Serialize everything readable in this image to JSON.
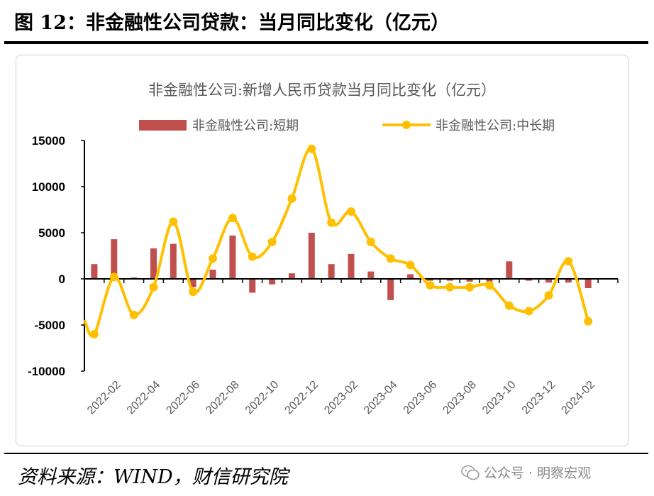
{
  "figure_title": "图 12：非金融性公司贷款：当月同比变化（亿元）",
  "source_note": "资料来源：WIND，财信研究院",
  "watermark": "公众号 · 明察宏观",
  "watermark_icon": "wechat-icon",
  "colors": {
    "bar": "#c0504d",
    "line": "#ffc000",
    "axis_labels": "#000000"
  },
  "chart_data": {
    "type": "bar+line",
    "title": "非金融性公司:新增人民币贷款当月同比变化（亿元）",
    "legend_position": "top",
    "grid": false,
    "ylim": [
      -10000,
      15000
    ],
    "yticks": [
      15000,
      10000,
      5000,
      0,
      -5000,
      -10000
    ],
    "ytick_labels": [
      "15000",
      "10000",
      "5000",
      "0",
      "-5000",
      "-10000"
    ],
    "x": [
      "2022-01",
      "2022-02",
      "2022-03",
      "2022-04",
      "2022-05",
      "2022-06",
      "2022-07",
      "2022-08",
      "2022-09",
      "2022-10",
      "2022-11",
      "2022-12",
      "2023-01",
      "2023-02",
      "2023-03",
      "2023-04",
      "2023-05",
      "2023-06",
      "2023-07",
      "2023-08",
      "2023-09",
      "2023-10",
      "2023-11",
      "2023-12",
      "2024-01",
      "2024-02",
      "2024-03"
    ],
    "xtick_labels": [
      "2022-02",
      "2022-04",
      "2022-06",
      "2022-08",
      "2022-10",
      "2022-12",
      "2023-02",
      "2023-04",
      "2023-06",
      "2023-08",
      "2023-10",
      "2023-12",
      "2024-02"
    ],
    "series": [
      {
        "name": "非金融性公司:短期",
        "type": "bar",
        "values": [
          1600,
          4300,
          150,
          3300,
          3800,
          -900,
          1000,
          4700,
          -1500,
          -600,
          600,
          5000,
          1600,
          2700,
          800,
          -2300,
          500,
          -200,
          -200,
          -300,
          -300,
          1900,
          -200,
          -400,
          -400,
          -1000,
          0
        ]
      },
      {
        "name": "非金融性公司:中长期",
        "type": "line",
        "values": [
          -6000,
          200,
          -3900,
          -900,
          6200,
          -1400,
          2200,
          6600,
          2400,
          4000,
          8700,
          14100,
          6100,
          7300,
          4000,
          2200,
          1500,
          -700,
          -900,
          -900,
          -700,
          -2900,
          -3500,
          -1800,
          1900,
          -4600,
          null
        ]
      }
    ]
  }
}
